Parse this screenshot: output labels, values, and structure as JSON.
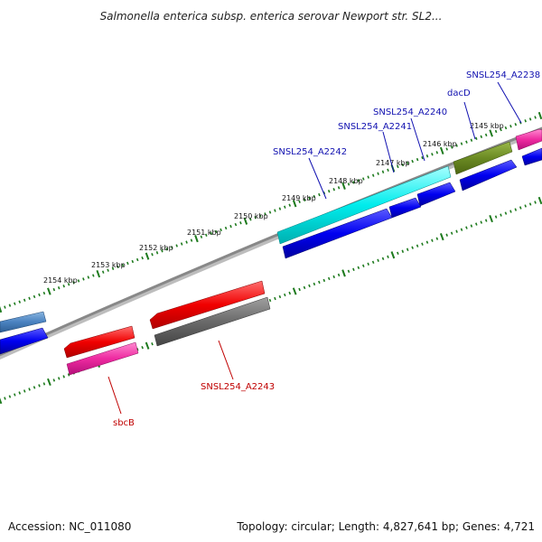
{
  "title": "Salmonella enterica subsp. enterica serovar Newport str. SL2...",
  "accession": "Accession: NC_011080",
  "topology": "Topology: circular; Length: 4,827,641 bp; Genes: 4,721",
  "colors": {
    "backbone": "#8a8a8a",
    "ticks": "#1d7a1d",
    "label_blue": "#1010b0",
    "label_red": "#c00000"
  },
  "kbp_labels": [
    "2145 kbp",
    "2146 kbp",
    "2147 kbp",
    "2148 kbp",
    "2149 kbp",
    "2150 kbp",
    "2151 kbp",
    "2152 kbp",
    "2153 kbp",
    "2154 kbp"
  ],
  "gene_labels": [
    {
      "text": "SNSL254_A2238",
      "color": "blue"
    },
    {
      "text": "dacD",
      "color": "blue"
    },
    {
      "text": "SNSL254_A2240",
      "color": "blue"
    },
    {
      "text": "SNSL254_A2241",
      "color": "blue"
    },
    {
      "text": "SNSL254_A2242",
      "color": "blue"
    },
    {
      "text": "SNSL254_A2243",
      "color": "red"
    },
    {
      "text": "sbcB",
      "color": "red"
    }
  ]
}
